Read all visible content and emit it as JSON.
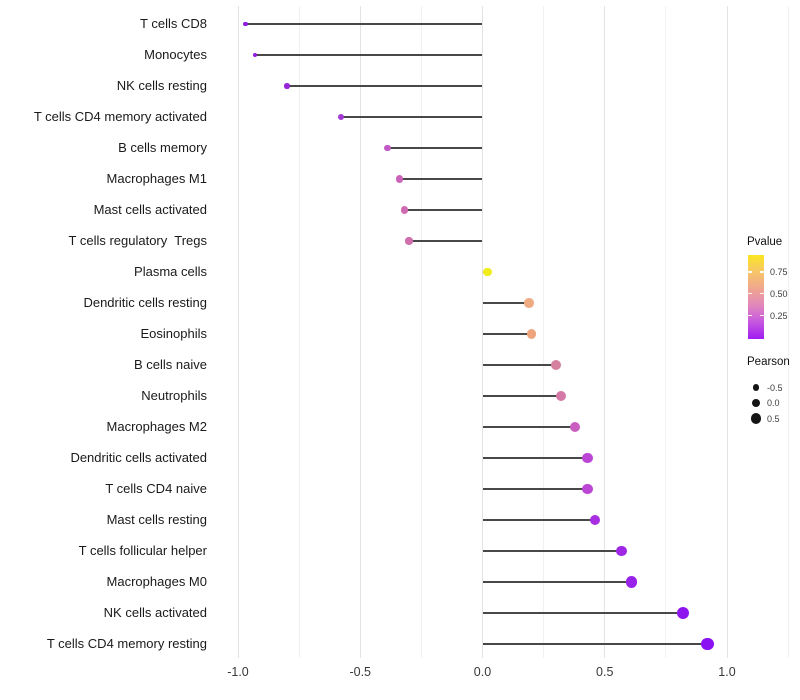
{
  "chart_data": {
    "type": "lollipop",
    "title": "",
    "xlabel": "",
    "ylabel": "",
    "x_tick_labels": [
      "-1.0",
      "-0.5",
      "0.0",
      "0.5",
      "1.0"
    ],
    "x_tick_values": [
      -1.0,
      -0.5,
      0.0,
      0.5,
      1.0
    ],
    "xlim": [
      -1.09,
      1.26
    ],
    "grid": {
      "vertical_major_step": 0.5,
      "vertical_minor_step": 0.25,
      "horizontal": false
    },
    "legend_position": "right",
    "categories": [
      "T cells CD8",
      "Monocytes",
      "NK cells resting",
      "T cells CD4 memory activated",
      "B cells memory",
      "Macrophages M1",
      "Mast cells activated",
      "T cells regulatory  Tregs",
      "Plasma cells",
      "Dendritic cells resting",
      "Eosinophils",
      "B cells naive",
      "Neutrophils",
      "Macrophages M2",
      "Dendritic cells activated",
      "T cells CD4 naive",
      "Mast cells resting",
      "T cells follicular helper",
      "Macrophages M0",
      "NK cells activated",
      "T cells CD4 memory resting"
    ],
    "series": [
      {
        "name": "Pearson",
        "values": [
          -0.97,
          -0.93,
          -0.8,
          -0.58,
          -0.39,
          -0.34,
          -0.32,
          -0.3,
          0.02,
          0.19,
          0.2,
          0.3,
          0.32,
          0.38,
          0.43,
          0.43,
          0.46,
          0.57,
          0.61,
          0.82,
          0.92
        ]
      }
    ],
    "point_colors": [
      "#8E1CE3",
      "#941BDF",
      "#9726D8",
      "#A338D2",
      "#C258C5",
      "#CB63BA",
      "#D06BB1",
      "#D16EAE",
      "#F2EC19",
      "#EFAC84",
      "#EEA57E",
      "#D5809F",
      "#D378A7",
      "#C95FC0",
      "#BB46D5",
      "#BB47D4",
      "#A72EE1",
      "#9F28E6",
      "#9922EA",
      "#8F15EF",
      "#8B10F2"
    ],
    "stem_color": "#484848"
  },
  "legend": {
    "pvalue": {
      "title": "Pvalue",
      "tick_labels": [
        "0.75",
        "0.50",
        "0.25"
      ],
      "gradient_stops": [
        "#FAE622",
        "#F7C569",
        "#F0A68F",
        "#E287BC",
        "#C657E0",
        "#A01BF2"
      ]
    },
    "pearson": {
      "title": "Pearson",
      "dot_color": "#151515",
      "items": [
        {
          "label": "-0.5",
          "value": -0.5
        },
        {
          "label": "0.0",
          "value": 0.0
        },
        {
          "label": "0.5",
          "value": 0.5
        }
      ]
    }
  }
}
